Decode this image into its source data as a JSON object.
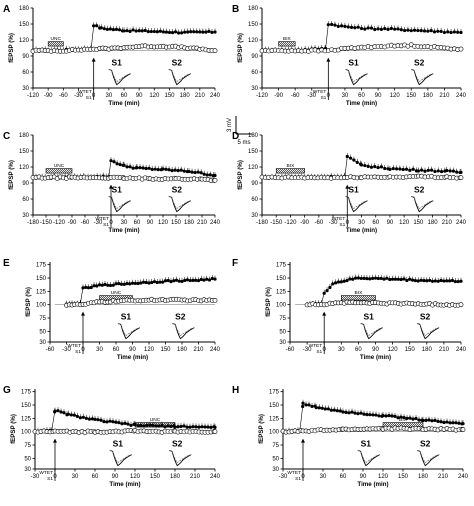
{
  "chart_data": [
    {
      "panel": "A",
      "type": "line",
      "xlabel": "Time (min)",
      "ylabel": "fEPSP (%)",
      "xlim": [
        -120,
        240
      ],
      "ylim": [
        30,
        180
      ],
      "xticks": [
        -120,
        -90,
        -60,
        -30,
        0,
        30,
        60,
        90,
        120,
        150,
        180,
        210,
        240
      ],
      "yticks": [
        30,
        60,
        90,
        120,
        150,
        180
      ],
      "baseline": 100,
      "drug_label": "UNC",
      "drug_range": [
        -90,
        -60
      ],
      "tetanus_label": [
        "WTET",
        "S1"
      ],
      "tetanus_time": 0,
      "traces": [
        "S1",
        "S2"
      ],
      "series": [
        {
          "marker": "filled",
          "points": [
            [
              -120,
              100
            ],
            [
              -60,
              101
            ],
            [
              -5,
              103
            ],
            [
              0,
              148
            ],
            [
              15,
              142
            ],
            [
              60,
              138
            ],
            [
              120,
              136
            ],
            [
              180,
              134
            ],
            [
              240,
              135
            ]
          ]
        },
        {
          "marker": "open",
          "points": [
            [
              -120,
              100
            ],
            [
              -60,
              100
            ],
            [
              0,
              103
            ],
            [
              30,
              104
            ],
            [
              90,
              108
            ],
            [
              150,
              108
            ],
            [
              210,
              103
            ],
            [
              240,
              100
            ]
          ]
        }
      ]
    },
    {
      "panel": "B",
      "type": "line",
      "xlabel": "Time (min)",
      "ylabel": "fEPSP (%)",
      "xlim": [
        -120,
        240
      ],
      "ylim": [
        30,
        180
      ],
      "xticks": [
        -120,
        -90,
        -60,
        -30,
        0,
        30,
        60,
        90,
        120,
        150,
        180,
        210,
        240
      ],
      "yticks": [
        30,
        60,
        90,
        120,
        150,
        180
      ],
      "baseline": 100,
      "drug_label": "BIX",
      "drug_range": [
        -90,
        -60
      ],
      "tetanus_label": [
        "WTET",
        "S1"
      ],
      "tetanus_time": 0,
      "traces": [
        "S1",
        "S2"
      ],
      "series": [
        {
          "marker": "filled",
          "points": [
            [
              -120,
              100
            ],
            [
              -60,
              101
            ],
            [
              -5,
              104
            ],
            [
              0,
              150
            ],
            [
              30,
              145
            ],
            [
              60,
              142
            ],
            [
              120,
              140
            ],
            [
              180,
              137
            ],
            [
              240,
              134
            ]
          ]
        },
        {
          "marker": "open",
          "points": [
            [
              -120,
              100
            ],
            [
              -60,
              100
            ],
            [
              0,
              100
            ],
            [
              30,
              104
            ],
            [
              90,
              108
            ],
            [
              150,
              110
            ],
            [
              210,
              105
            ],
            [
              240,
              103
            ]
          ]
        }
      ]
    },
    {
      "panel": "C",
      "type": "line",
      "xlabel": "Time (min)",
      "ylabel": "fEPSP (%)",
      "xlim": [
        -180,
        240
      ],
      "ylim": [
        30,
        180
      ],
      "xticks": [
        -180,
        -150,
        -120,
        -90,
        -60,
        -30,
        0,
        30,
        60,
        90,
        120,
        150,
        180,
        210,
        240
      ],
      "yticks": [
        30,
        60,
        90,
        120,
        150,
        180
      ],
      "baseline": 100,
      "drug_label": "UNC",
      "drug_range": [
        -150,
        -90
      ],
      "tetanus_label": [
        "WTET",
        "S1"
      ],
      "tetanus_time": 0,
      "traces": [
        "S1",
        "S2"
      ],
      "scale_bar": {
        "v": "3 mV",
        "t": "5 ms"
      },
      "series": [
        {
          "marker": "filled",
          "points": [
            [
              -180,
              100
            ],
            [
              -120,
              100
            ],
            [
              -60,
              101
            ],
            [
              -5,
              102
            ],
            [
              0,
              132
            ],
            [
              30,
              122
            ],
            [
              60,
              118
            ],
            [
              120,
              115
            ],
            [
              180,
              112
            ],
            [
              240,
              104
            ]
          ]
        },
        {
          "marker": "open",
          "points": [
            [
              -180,
              100
            ],
            [
              -90,
              100
            ],
            [
              0,
              100
            ],
            [
              30,
              99
            ],
            [
              90,
              98
            ],
            [
              150,
              98
            ],
            [
              210,
              97
            ],
            [
              240,
              95
            ]
          ]
        }
      ]
    },
    {
      "panel": "D",
      "type": "line",
      "xlabel": "Time (min)",
      "ylabel": "fEPSP (%)",
      "xlim": [
        -180,
        240
      ],
      "ylim": [
        30,
        180
      ],
      "xticks": [
        -180,
        -150,
        -120,
        -90,
        -60,
        -30,
        0,
        30,
        60,
        90,
        120,
        150,
        180,
        210,
        240
      ],
      "yticks": [
        30,
        60,
        90,
        120,
        150,
        180
      ],
      "baseline": 100,
      "drug_label": "BIX",
      "drug_range": [
        -150,
        -90
      ],
      "tetanus_label": [
        "WTET",
        "S1"
      ],
      "tetanus_time": 0,
      "traces": [
        "S1",
        "S2"
      ],
      "series": [
        {
          "marker": "filled",
          "points": [
            [
              -180,
              100
            ],
            [
              -90,
              100
            ],
            [
              -5,
              102
            ],
            [
              0,
              140
            ],
            [
              30,
              123
            ],
            [
              90,
              117
            ],
            [
              150,
              114
            ],
            [
              210,
              112
            ],
            [
              240,
              110
            ]
          ]
        },
        {
          "marker": "open",
          "points": [
            [
              -180,
              100
            ],
            [
              -90,
              100
            ],
            [
              0,
              100
            ],
            [
              30,
              101
            ],
            [
              90,
              101
            ],
            [
              150,
              102
            ],
            [
              210,
              101
            ],
            [
              240,
              100
            ]
          ]
        }
      ]
    },
    {
      "panel": "E",
      "type": "line",
      "xlabel": "Time (min)",
      "ylabel": "fEPSP (%)",
      "xlim": [
        -60,
        240
      ],
      "ylim": [
        30,
        180
      ],
      "xticks": [
        -60,
        -30,
        0,
        30,
        60,
        90,
        120,
        150,
        180,
        210,
        240
      ],
      "yticks": [
        30,
        50,
        75,
        100,
        125,
        150,
        175
      ],
      "baseline": 100,
      "drug_label": "UNC",
      "drug_range": [
        30,
        90
      ],
      "tetanus_label": [
        "WTET",
        "S1"
      ],
      "tetanus_time": 0,
      "traces": [
        "S1",
        "S2"
      ],
      "series": [
        {
          "marker": "filled",
          "points": [
            [
              -30,
              100
            ],
            [
              -5,
              102
            ],
            [
              0,
              130
            ],
            [
              30,
              136
            ],
            [
              90,
              140
            ],
            [
              150,
              144
            ],
            [
              210,
              146
            ],
            [
              240,
              148
            ]
          ]
        },
        {
          "marker": "open",
          "points": [
            [
              -30,
              100
            ],
            [
              0,
              100
            ],
            [
              30,
              105
            ],
            [
              90,
              108
            ],
            [
              150,
              109
            ],
            [
              210,
              108
            ],
            [
              240,
              108
            ]
          ]
        }
      ]
    },
    {
      "panel": "F",
      "type": "line",
      "xlabel": "Time (min)",
      "ylabel": "fEPSP (%)",
      "xlim": [
        -60,
        240
      ],
      "ylim": [
        30,
        180
      ],
      "xticks": [
        -60,
        -30,
        0,
        30,
        60,
        90,
        120,
        150,
        180,
        210,
        240
      ],
      "yticks": [
        30,
        50,
        75,
        100,
        125,
        150,
        175
      ],
      "baseline": 100,
      "drug_label": "BIX",
      "drug_range": [
        30,
        90
      ],
      "tetanus_label": [
        "WTET",
        "S1"
      ],
      "tetanus_time": 0,
      "traces": [
        "S1",
        "S2"
      ],
      "series": [
        {
          "marker": "filled",
          "points": [
            [
              -30,
              100
            ],
            [
              -5,
              102
            ],
            [
              0,
              120
            ],
            [
              15,
              140
            ],
            [
              60,
              150
            ],
            [
              120,
              148
            ],
            [
              180,
              145
            ],
            [
              240,
              144
            ]
          ]
        },
        {
          "marker": "open",
          "points": [
            [
              -30,
              100
            ],
            [
              0,
              101
            ],
            [
              30,
              104
            ],
            [
              90,
              103
            ],
            [
              150,
              102
            ],
            [
              210,
              100
            ],
            [
              240,
              100
            ]
          ]
        }
      ]
    },
    {
      "panel": "G",
      "type": "line",
      "xlabel": "Time (min)",
      "ylabel": "fEPSP (%)",
      "xlim": [
        -30,
        240
      ],
      "ylim": [
        30,
        180
      ],
      "xticks": [
        -30,
        0,
        30,
        60,
        90,
        120,
        150,
        180,
        210,
        240
      ],
      "yticks": [
        30,
        50,
        75,
        100,
        125,
        150,
        175
      ],
      "baseline": 100,
      "drug_label": "UNC",
      "drug_range": [
        120,
        180
      ],
      "tetanus_label": [
        "WTET",
        "S1"
      ],
      "tetanus_time": 0,
      "traces": [
        "S1",
        "S2"
      ],
      "series": [
        {
          "marker": "filled",
          "points": [
            [
              -30,
              100
            ],
            [
              -5,
              101
            ],
            [
              0,
              140
            ],
            [
              20,
              132
            ],
            [
              60,
              122
            ],
            [
              120,
              112
            ],
            [
              180,
              110
            ],
            [
              240,
              108
            ]
          ]
        },
        {
          "marker": "open",
          "points": [
            [
              -30,
              100
            ],
            [
              0,
              100
            ],
            [
              60,
              100
            ],
            [
              120,
              101
            ],
            [
              180,
              100
            ],
            [
              240,
              100
            ]
          ]
        }
      ]
    },
    {
      "panel": "H",
      "type": "line",
      "xlabel": "Time (min)",
      "ylabel": "fEPSP (%)",
      "xlim": [
        -30,
        240
      ],
      "ylim": [
        30,
        180
      ],
      "xticks": [
        -30,
        0,
        30,
        60,
        90,
        120,
        150,
        180,
        210,
        240
      ],
      "yticks": [
        30,
        50,
        75,
        100,
        125,
        150,
        175
      ],
      "baseline": 100,
      "drug_label": "BIX",
      "drug_range": [
        120,
        180
      ],
      "tetanus_label": [
        "WTET",
        "S1"
      ],
      "tetanus_time": 0,
      "traces": [
        "S1",
        "S2"
      ],
      "series": [
        {
          "marker": "filled",
          "points": [
            [
              -30,
              100
            ],
            [
              -5,
              101
            ],
            [
              0,
              152
            ],
            [
              20,
              146
            ],
            [
              60,
              138
            ],
            [
              120,
              130
            ],
            [
              180,
              122
            ],
            [
              240,
              115
            ]
          ]
        },
        {
          "marker": "open",
          "points": [
            [
              -30,
              100
            ],
            [
              0,
              101
            ],
            [
              60,
              104
            ],
            [
              120,
              106
            ],
            [
              180,
              105
            ],
            [
              240,
              104
            ]
          ]
        }
      ]
    }
  ]
}
